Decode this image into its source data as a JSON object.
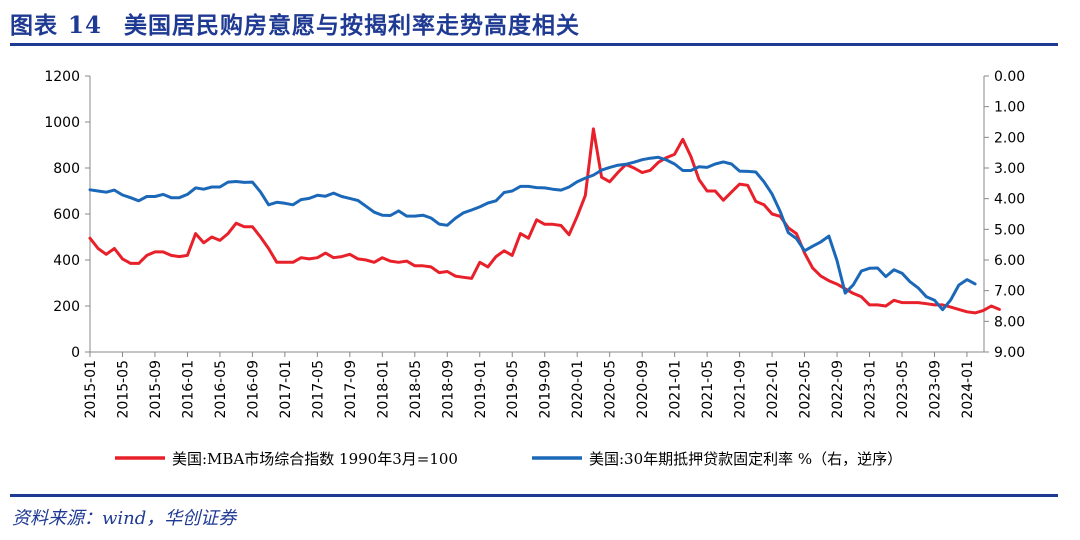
{
  "header": {
    "figure_label": "图表",
    "figure_number": "14",
    "title": "美国居民购房意愿与按揭利率走势高度相关"
  },
  "footer": {
    "source": "资料来源：wind，华创证券"
  },
  "chart_data": {
    "type": "line",
    "title": "美国居民购房意愿与按揭利率走势高度相关",
    "x_tick_labels": [
      "2015-01",
      "2015-05",
      "2015-09",
      "2016-01",
      "2016-05",
      "2016-09",
      "2017-01",
      "2017-05",
      "2017-09",
      "2018-01",
      "2018-05",
      "2018-09",
      "2019-01",
      "2019-05",
      "2019-09",
      "2020-01",
      "2020-05",
      "2020-09",
      "2021-01",
      "2021-05",
      "2021-09",
      "2022-01",
      "2022-05",
      "2022-09",
      "2023-01",
      "2023-05",
      "2023-09",
      "2024-01"
    ],
    "left_axis": {
      "ylim": [
        0,
        1200
      ],
      "ticks": [
        "0",
        "200",
        "400",
        "600",
        "800",
        "1000",
        "1200"
      ]
    },
    "right_axis": {
      "ylim": [
        0,
        9
      ],
      "reversed": true,
      "ticks": [
        "0.00",
        "1.00",
        "2.00",
        "3.00",
        "4.00",
        "5.00",
        "6.00",
        "7.00",
        "8.00",
        "9.00"
      ]
    },
    "grid": false,
    "legend_placement": "bottom",
    "series": [
      {
        "name": "美国:MBA市场综合指数 1990年3月=100",
        "axis": "left",
        "color": "#e8202a",
        "values": [
          495,
          450,
          425,
          450,
          405,
          385,
          385,
          420,
          435,
          435,
          420,
          415,
          420,
          515,
          475,
          500,
          485,
          515,
          560,
          545,
          545,
          500,
          450,
          390,
          390,
          390,
          410,
          405,
          410,
          430,
          410,
          415,
          425,
          405,
          400,
          390,
          410,
          395,
          390,
          395,
          375,
          375,
          370,
          345,
          350,
          330,
          325,
          320,
          390,
          370,
          415,
          440,
          420,
          515,
          495,
          575,
          555,
          555,
          550,
          510,
          590,
          680,
          970,
          760,
          740,
          780,
          815,
          800,
          780,
          790,
          825,
          845,
          860,
          925,
          850,
          750,
          700,
          700,
          660,
          695,
          730,
          725,
          655,
          640,
          600,
          590,
          540,
          515,
          430,
          365,
          330,
          310,
          295,
          275,
          255,
          240,
          205,
          205,
          200,
          225,
          215,
          215,
          215,
          210,
          205,
          205,
          195,
          185,
          175,
          170,
          180,
          200,
          185
        ]
      },
      {
        "name": "美国:30年期抵押贷款固定利率 %（右，逆序）",
        "axis": "right",
        "color": "#1c68b8",
        "values": [
          3.71,
          3.75,
          3.79,
          3.72,
          3.88,
          3.97,
          4.07,
          3.93,
          3.93,
          3.86,
          3.97,
          3.97,
          3.86,
          3.65,
          3.69,
          3.62,
          3.62,
          3.46,
          3.44,
          3.47,
          3.46,
          3.78,
          4.2,
          4.12,
          4.15,
          4.2,
          4.03,
          3.99,
          3.89,
          3.92,
          3.82,
          3.93,
          3.99,
          4.06,
          4.25,
          4.44,
          4.54,
          4.55,
          4.4,
          4.57,
          4.57,
          4.54,
          4.63,
          4.83,
          4.87,
          4.64,
          4.46,
          4.37,
          4.27,
          4.14,
          4.07,
          3.8,
          3.75,
          3.6,
          3.6,
          3.64,
          3.65,
          3.69,
          3.72,
          3.62,
          3.45,
          3.33,
          3.23,
          3.07,
          2.98,
          2.91,
          2.88,
          2.81,
          2.73,
          2.68,
          2.65,
          2.74,
          2.87,
          3.08,
          3.08,
          2.96,
          2.98,
          2.87,
          2.8,
          2.87,
          3.1,
          3.11,
          3.13,
          3.45,
          3.85,
          4.42,
          5.11,
          5.3,
          5.7,
          5.55,
          5.41,
          5.22,
          6.02,
          7.08,
          6.81,
          6.36,
          6.27,
          6.26,
          6.54,
          6.32,
          6.43,
          6.71,
          6.91,
          7.2,
          7.31,
          7.62,
          7.3,
          6.82,
          6.64,
          6.78
        ]
      }
    ]
  }
}
